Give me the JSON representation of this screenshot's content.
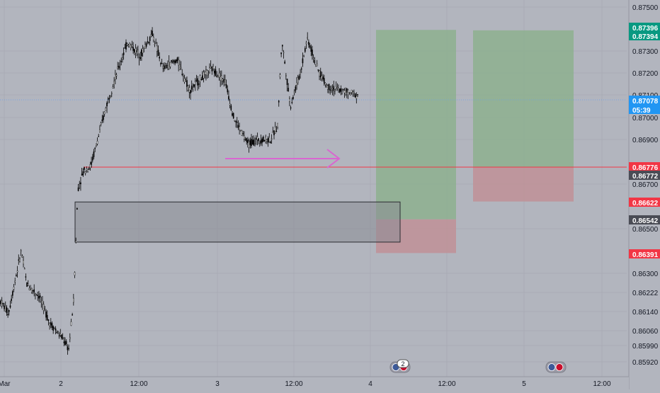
{
  "chart_data": {
    "type": "candlestick",
    "x_labels": [
      "Mar",
      "2",
      "12:00",
      "3",
      "12:00",
      "4",
      "12:00",
      "5",
      "12:00"
    ],
    "y_ticks": [
      "0.87500",
      "0.87300",
      "0.87200",
      "0.87100",
      "0.87000",
      "0.86900",
      "0.86700",
      "0.86500",
      "0.86300",
      "0.86222",
      "0.86140",
      "0.86060",
      "0.85990",
      "0.85920"
    ],
    "y_range": [
      0.8588,
      0.8755
    ],
    "price_badges": [
      {
        "label": "0.87396",
        "kind": "green"
      },
      {
        "label": "0.87394",
        "kind": "green"
      },
      {
        "label": "0.87078",
        "kind": "current"
      },
      {
        "label": "05:39",
        "kind": "current"
      },
      {
        "label": "0.86776",
        "kind": "red"
      },
      {
        "label": "0.86772",
        "kind": "dark"
      },
      {
        "label": "0.86622",
        "kind": "red"
      },
      {
        "label": "0.86542",
        "kind": "dark"
      },
      {
        "label": "0.86391",
        "kind": "red"
      }
    ],
    "levels": {
      "current_price": 0.87078,
      "red_line": 0.86776
    },
    "positions": [
      {
        "entry": 0.86542,
        "target": 0.87396,
        "stop": 0.86391,
        "direction": "long"
      },
      {
        "entry": 0.86776,
        "target": 0.87394,
        "stop": 0.86622,
        "direction": "long"
      }
    ],
    "zone": {
      "top": 0.8662,
      "bottom": 0.8644
    },
    "colors": {
      "background": "#b2b5be",
      "candle": "#000000",
      "profit": "#8db08f",
      "loss": "#c09098",
      "red_line": "#f23645",
      "current": "#5b9cf6",
      "arrow": "#d966d0"
    },
    "event_markers": [
      {
        "label": "2",
        "icon": "flag-icons"
      },
      {
        "label": "",
        "icon": "flag-icons"
      }
    ],
    "candle_count": 300
  }
}
